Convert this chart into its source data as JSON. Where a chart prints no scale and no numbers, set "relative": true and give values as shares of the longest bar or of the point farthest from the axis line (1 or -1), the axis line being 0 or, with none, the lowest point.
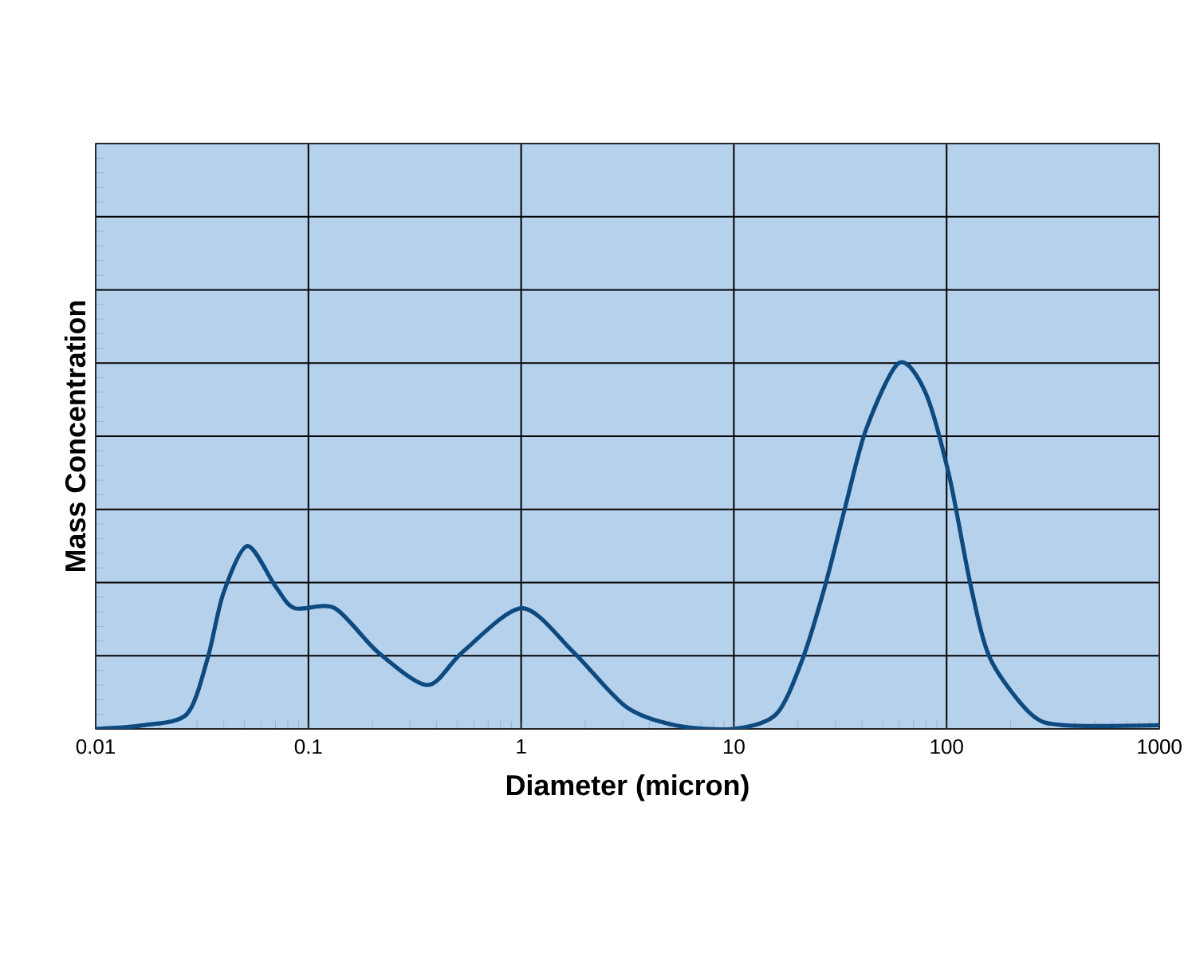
{
  "chart_data": {
    "type": "line",
    "xlabel": "Diameter (micron)",
    "ylabel": "Mass Concentration",
    "relative": true,
    "log": "x",
    "grid": true,
    "xlim": [
      0.01,
      1000
    ],
    "xticks": [
      0.01,
      0.1,
      1,
      10,
      100,
      1000
    ],
    "series": [
      {
        "color": "#0d4a80",
        "x": [
          0.01,
          0.0168,
          0.0268,
          0.0335,
          0.0398,
          0.0516,
          0.07,
          0.086,
          0.133,
          0.212,
          0.363,
          0.53,
          1.01,
          1.76,
          3.12,
          5.3,
          9.9,
          15.8,
          21,
          26.8,
          33.5,
          41.9,
          59.6,
          79.5,
          103,
          130,
          161,
          250,
          358,
          1000
        ],
        "values": [
          0,
          0.01,
          0.04,
          0.19,
          0.37,
          0.5,
          0.39,
          0.33,
          0.33,
          0.21,
          0.12,
          0.21,
          0.33,
          0.21,
          0.06,
          0.01,
          0,
          0.04,
          0.19,
          0.39,
          0.61,
          0.82,
          1,
          0.92,
          0.69,
          0.39,
          0.19,
          0.04,
          0.01,
          0.01
        ]
      }
    ]
  }
}
